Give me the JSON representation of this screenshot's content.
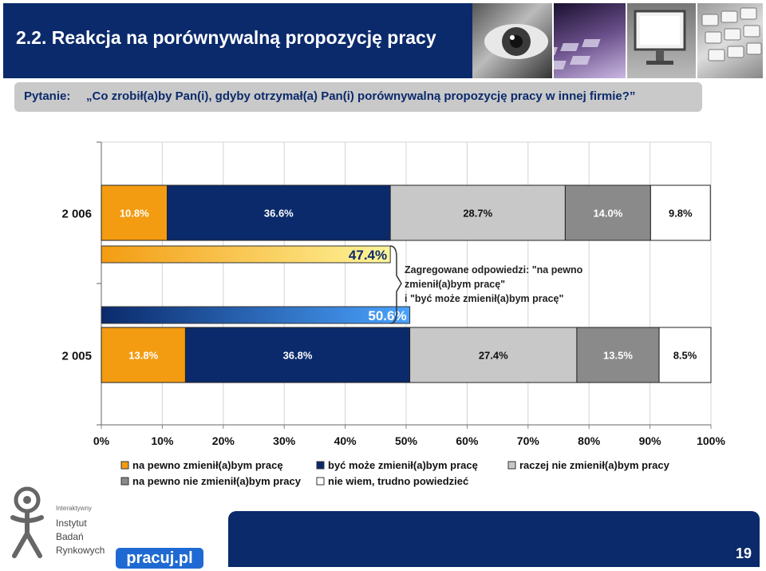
{
  "header": {
    "title": "2.2. Reakcja na porównywalną propozycję pracy"
  },
  "question": {
    "label": "Pytanie:",
    "text": "„Co zrobił(a)by Pan(i), gdyby otrzymał(a) Pan(i) porównywalną propozycję pracy w innej firmie?”"
  },
  "chart_data": {
    "type": "bar",
    "orientation": "horizontal",
    "stacked": true,
    "categories": [
      "2 006",
      "2 005"
    ],
    "series": [
      {
        "name": "na pewno zmienił(a)bym pracę",
        "values": [
          10.8,
          13.8
        ],
        "labels": [
          "10.8%",
          "13.8%"
        ],
        "color": "#f39c12"
      },
      {
        "name": "być może zmienił(a)bym pracę",
        "values": [
          36.6,
          36.8
        ],
        "labels": [
          "36.6%",
          "36.8%"
        ],
        "color": "#0b2a6b"
      },
      {
        "name": "raczej nie zmienił(a)bym pracy",
        "values": [
          28.7,
          27.4
        ],
        "labels": [
          "28.7%",
          "27.4%"
        ],
        "color": "#c8c8c8"
      },
      {
        "name": "na pewno nie zmienił(a)bym pracy",
        "values": [
          14.0,
          13.5
        ],
        "labels": [
          "14.0%",
          "13.5%"
        ],
        "color": "#8a8a8a"
      },
      {
        "name": "nie wiem, trudno powiedzieć",
        "values": [
          9.8,
          8.5
        ],
        "labels": [
          "9.8%",
          "8.5%"
        ],
        "color": "#ffffff"
      }
    ],
    "aggregates": [
      {
        "value": 47.4,
        "label": "47.4%",
        "colors": [
          "#fff59a",
          "#f39c12"
        ]
      },
      {
        "value": 50.6,
        "label": "50.6%",
        "colors": [
          "#0b2a6b",
          "#4aa3ff"
        ]
      }
    ],
    "annotation": [
      "Zagregowane odpowiedzi: \"na pewno",
      "zmienił(a)bym pracę\"",
      "i \"być może zmienił(a)bym pracę\""
    ],
    "x_ticks": [
      "0%",
      "10%",
      "20%",
      "30%",
      "40%",
      "50%",
      "60%",
      "70%",
      "80%",
      "90%",
      "100%"
    ],
    "xlim": [
      0,
      100
    ],
    "grid": true,
    "legend_position": "bottom"
  },
  "footer": {
    "institute_small": "Interaktywny",
    "institute_lines": [
      "Instytut",
      "Badań",
      "Rynkowych"
    ],
    "brand": "pracuj.pl",
    "page_number": "19"
  }
}
